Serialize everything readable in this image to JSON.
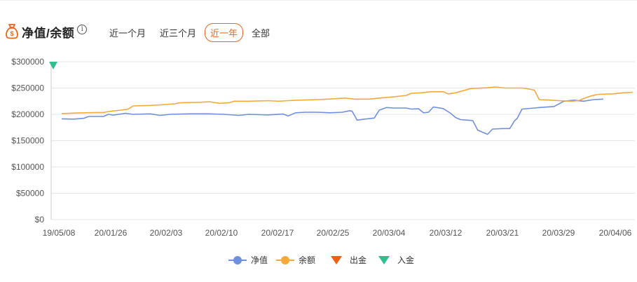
{
  "header": {
    "title": "净值/余额",
    "info_symbol": "i",
    "tabs": [
      {
        "label": "近一个月",
        "active": false
      },
      {
        "label": "近三个月",
        "active": false
      },
      {
        "label": "近一年",
        "active": true
      },
      {
        "label": "全部",
        "active": false
      }
    ]
  },
  "colors": {
    "accent": "#e8651a",
    "net_value": "#6f8fe0",
    "balance": "#f5a93b",
    "withdraw": "#ee5f16",
    "deposit": "#2fbf8f",
    "grid": "#e6e6e6"
  },
  "chart_data": {
    "type": "line",
    "ylim": [
      0,
      300000
    ],
    "y_ticks": [
      "$0",
      "$50000",
      "$100000",
      "$150000",
      "$200000",
      "$250000",
      "$300000"
    ],
    "x_tick_labels": [
      "19/05/08",
      "20/01/26",
      "20/02/03",
      "20/02/10",
      "20/02/17",
      "20/02/25",
      "20/03/04",
      "20/03/12",
      "20/03/21",
      "20/03/29",
      "20/04/06"
    ],
    "grid": true,
    "legend_position": "bottom",
    "series": [
      {
        "name": "净值",
        "values": [
          [
            0,
            191500
          ],
          [
            0.025,
            191000
          ],
          [
            0.045,
            192500
          ],
          [
            0.055,
            196000
          ],
          [
            0.085,
            196000
          ],
          [
            0.095,
            200000
          ],
          [
            0.105,
            198500
          ],
          [
            0.13,
            202000
          ],
          [
            0.145,
            200000
          ],
          [
            0.18,
            201000
          ],
          [
            0.2,
            198000
          ],
          [
            0.22,
            200000
          ],
          [
            0.26,
            201000
          ],
          [
            0.3,
            201000
          ],
          [
            0.33,
            200000
          ],
          [
            0.36,
            198000
          ],
          [
            0.38,
            200000
          ],
          [
            0.42,
            199000
          ],
          [
            0.45,
            200500
          ],
          [
            0.46,
            197000
          ],
          [
            0.475,
            203000
          ],
          [
            0.495,
            204000
          ],
          [
            0.52,
            204000
          ],
          [
            0.545,
            203000
          ],
          [
            0.57,
            204000
          ],
          [
            0.585,
            207000
          ],
          [
            0.59,
            206000
          ],
          [
            0.6,
            189000
          ],
          [
            0.615,
            191000
          ],
          [
            0.635,
            193000
          ],
          [
            0.645,
            208000
          ],
          [
            0.66,
            213000
          ],
          [
            0.675,
            212000
          ],
          [
            0.7,
            212000
          ],
          [
            0.71,
            210000
          ],
          [
            0.725,
            210500
          ],
          [
            0.735,
            203000
          ],
          [
            0.745,
            204000
          ],
          [
            0.755,
            214000
          ],
          [
            0.775,
            211000
          ],
          [
            0.79,
            202000
          ],
          [
            0.8,
            194000
          ],
          [
            0.81,
            190000
          ],
          [
            0.825,
            189000
          ],
          [
            0.835,
            188000
          ],
          [
            0.845,
            170000
          ],
          [
            0.855,
            166000
          ],
          [
            0.865,
            162000
          ],
          [
            0.875,
            172000
          ],
          [
            0.895,
            173000
          ],
          [
            0.91,
            173000
          ],
          [
            0.92,
            188000
          ],
          [
            0.925,
            192000
          ],
          [
            0.935,
            210000
          ],
          [
            0.96,
            212000
          ],
          [
            0.97,
            213000
          ],
          [
            1.0,
            215000
          ],
          [
            1.02,
            225000
          ],
          [
            1.04,
            227000
          ],
          [
            1.06,
            225000
          ],
          [
            1.08,
            228000
          ],
          [
            1.1,
            229000
          ]
        ]
      },
      {
        "name": "余额",
        "values": [
          [
            0,
            201500
          ],
          [
            0.03,
            202500
          ],
          [
            0.07,
            203500
          ],
          [
            0.085,
            203500
          ],
          [
            0.1,
            206000
          ],
          [
            0.12,
            208000
          ],
          [
            0.135,
            210000
          ],
          [
            0.145,
            216000
          ],
          [
            0.18,
            217000
          ],
          [
            0.2,
            218000
          ],
          [
            0.23,
            220000
          ],
          [
            0.24,
            222000
          ],
          [
            0.28,
            223000
          ],
          [
            0.3,
            224000
          ],
          [
            0.32,
            221000
          ],
          [
            0.34,
            222000
          ],
          [
            0.35,
            225000
          ],
          [
            0.38,
            225000
          ],
          [
            0.42,
            226000
          ],
          [
            0.44,
            225000
          ],
          [
            0.46,
            226000
          ],
          [
            0.48,
            227000
          ],
          [
            0.52,
            228000
          ],
          [
            0.54,
            229000
          ],
          [
            0.56,
            230000
          ],
          [
            0.575,
            231000
          ],
          [
            0.595,
            229000
          ],
          [
            0.625,
            229000
          ],
          [
            0.645,
            231000
          ],
          [
            0.67,
            233000
          ],
          [
            0.7,
            236000
          ],
          [
            0.71,
            240000
          ],
          [
            0.73,
            241000
          ],
          [
            0.75,
            243000
          ],
          [
            0.775,
            243000
          ],
          [
            0.785,
            239000
          ],
          [
            0.8,
            241000
          ],
          [
            0.83,
            249000
          ],
          [
            0.87,
            251000
          ],
          [
            0.88,
            252000
          ],
          [
            0.9,
            250000
          ],
          [
            0.935,
            250000
          ],
          [
            0.95,
            248000
          ],
          [
            0.96,
            246000
          ],
          [
            0.97,
            228000
          ],
          [
            0.995,
            227000
          ],
          [
            1.01,
            226000
          ],
          [
            1.035,
            225000
          ],
          [
            1.05,
            226000
          ],
          [
            1.06,
            230000
          ],
          [
            1.075,
            235000
          ],
          [
            1.09,
            238000
          ],
          [
            1.12,
            239000
          ],
          [
            1.14,
            241000
          ],
          [
            1.16,
            242000
          ]
        ]
      },
      {
        "name": "出金",
        "values": []
      },
      {
        "name": "入金",
        "values": [
          [
            0,
            300000
          ]
        ]
      }
    ]
  }
}
